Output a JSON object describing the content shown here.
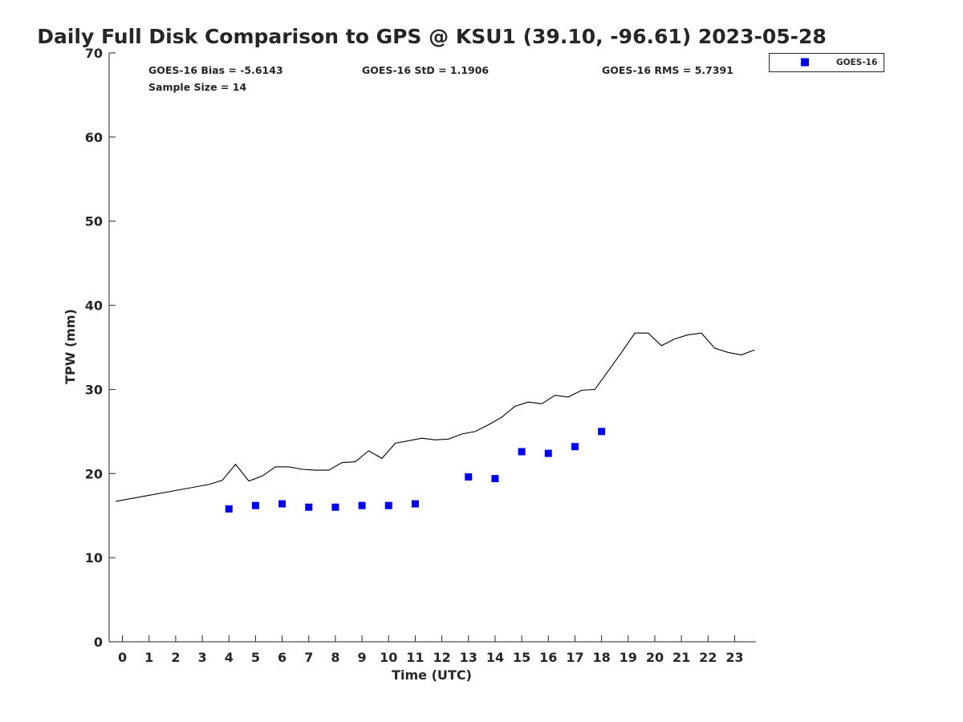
{
  "chart_data": {
    "type": "scatter",
    "title": "Daily Full Disk Comparison to GPS @ KSU1 (39.10, -96.61) 2023-05-28",
    "xlabel": "Time (UTC)",
    "ylabel": "TPW (mm)",
    "xlim": [
      -0.5,
      23.8
    ],
    "ylim": [
      0,
      70
    ],
    "x_ticks": [
      0,
      1,
      2,
      3,
      4,
      5,
      6,
      7,
      8,
      9,
      10,
      11,
      12,
      13,
      14,
      15,
      16,
      17,
      18,
      19,
      20,
      21,
      22,
      23
    ],
    "y_ticks": [
      0,
      10,
      20,
      30,
      40,
      50,
      60,
      70
    ],
    "grid": false,
    "legend_position": "top-right",
    "stats": {
      "bias": "GOES-16 Bias = -5.6143",
      "std": "GOES-16 StD = 1.1906",
      "rms": "GOES-16 RMS = 5.7391",
      "sample_size": "Sample Size = 14"
    },
    "series": [
      {
        "name": "GOES-16",
        "kind": "scatter",
        "marker": "square",
        "color": "#0000ee",
        "x": [
          4,
          5,
          6,
          7,
          8,
          9,
          10,
          11,
          13,
          14,
          15,
          16,
          17,
          18
        ],
        "y": [
          15.8,
          16.2,
          16.4,
          16.0,
          16.0,
          16.2,
          16.2,
          16.4,
          19.6,
          19.4,
          22.6,
          22.4,
          23.2,
          25.0
        ]
      },
      {
        "kind": "line",
        "color": "#000000",
        "x": [
          -0.25,
          3.25,
          3.75,
          4.25,
          4.75,
          5.25,
          5.75,
          6.25,
          6.75,
          7.25,
          7.75,
          8.25,
          8.75,
          9.25,
          9.75,
          10.25,
          10.75,
          11.25,
          11.75,
          12.25,
          12.75,
          13.25,
          13.75,
          14.25,
          14.75,
          15.25,
          15.75,
          16.25,
          16.75,
          17.25,
          17.75,
          18.25,
          18.75,
          19.25,
          19.75,
          20.25,
          20.75,
          21.25,
          21.75,
          22.25,
          22.75,
          23.25,
          23.75
        ],
        "y": [
          16.7,
          18.7,
          19.2,
          21.1,
          19.1,
          19.7,
          20.8,
          20.8,
          20.5,
          20.4,
          20.4,
          21.3,
          21.4,
          22.7,
          21.8,
          23.6,
          23.9,
          24.2,
          24.0,
          24.1,
          24.7,
          25.0,
          25.8,
          26.7,
          28.0,
          28.5,
          28.3,
          29.3,
          29.1,
          29.9,
          30.0,
          32.2,
          34.4,
          36.7,
          36.7,
          35.2,
          36.0,
          36.5,
          36.7,
          34.9,
          34.4,
          34.1,
          34.7
        ]
      }
    ]
  }
}
